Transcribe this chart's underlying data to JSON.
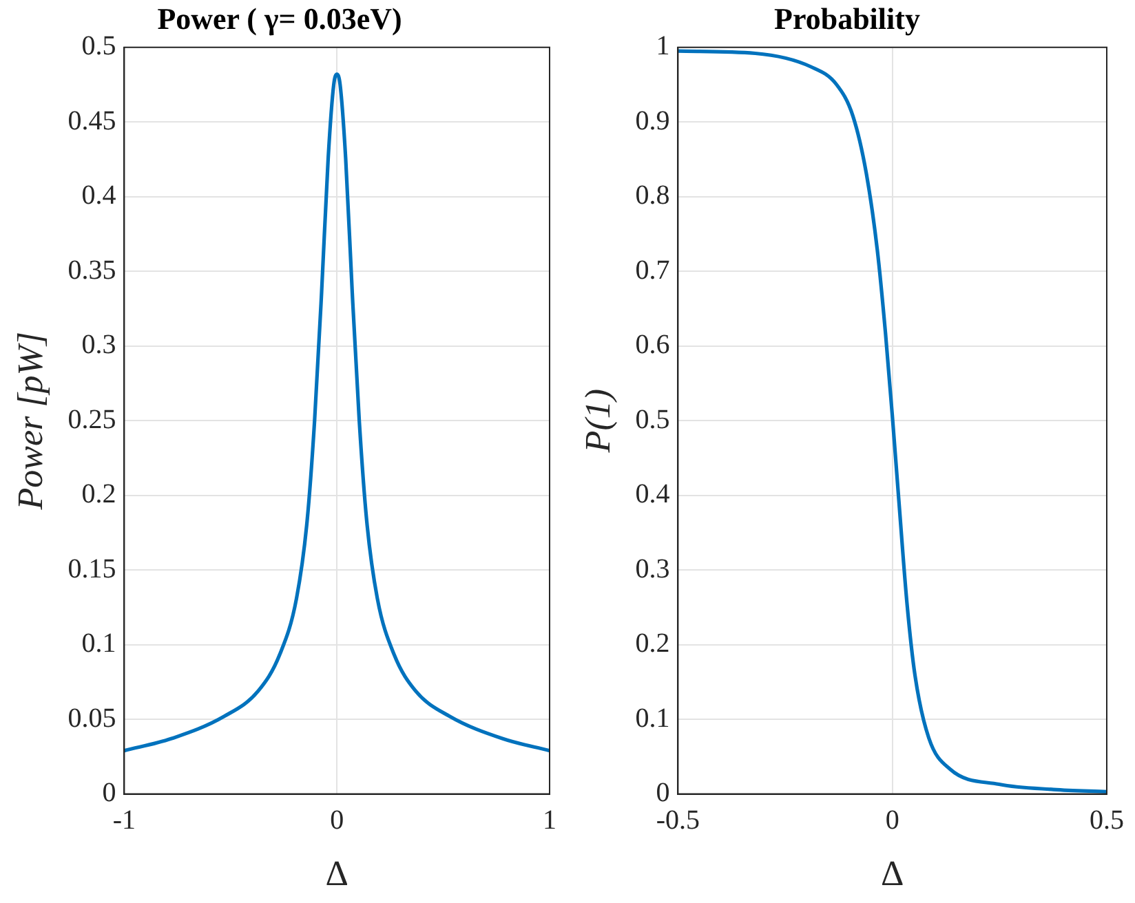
{
  "chart_data": [
    {
      "type": "line",
      "title": "Power ( γ= 0.03eV)",
      "xlabel": "Δ",
      "ylabel": "Power [pW]",
      "xlim": [
        -1,
        1
      ],
      "xticks": [
        -1,
        0,
        1
      ],
      "ylim": [
        0,
        0.5
      ],
      "yticks": [
        0,
        0.05,
        0.1,
        0.15,
        0.2,
        0.25,
        0.3,
        0.35,
        0.4,
        0.45,
        0.5
      ],
      "grid": true,
      "legend": false,
      "series": [
        {
          "color": "#0072bd",
          "x": [
            -1,
            -0.78,
            -0.53,
            -0.37,
            -0.27,
            -0.19,
            -0.14,
            -0.105,
            -0.072,
            -0.041,
            -0.015,
            0,
            0.015,
            0.041,
            0.072,
            0.105,
            0.14,
            0.19,
            0.27,
            0.37,
            0.53,
            0.78,
            1
          ],
          "values": [
            0.029,
            0.037,
            0.052,
            0.069,
            0.093,
            0.131,
            0.183,
            0.25,
            0.336,
            0.426,
            0.475,
            0.482,
            0.475,
            0.426,
            0.336,
            0.25,
            0.183,
            0.131,
            0.093,
            0.069,
            0.052,
            0.037,
            0.029
          ]
        }
      ]
    },
    {
      "type": "line",
      "title": "Probability",
      "xlabel": "Δ",
      "ylabel": "P(1)",
      "xlim": [
        -0.5,
        0.5
      ],
      "xticks": [
        -0.5,
        0,
        0.5
      ],
      "ylim": [
        0,
        1
      ],
      "yticks": [
        0,
        0.1,
        0.2,
        0.3,
        0.4,
        0.5,
        0.6,
        0.7,
        0.8,
        0.9,
        1
      ],
      "grid": true,
      "legend": false,
      "series": [
        {
          "color": "#0072bd",
          "x": [
            -0.5,
            -0.32,
            -0.19,
            -0.13,
            -0.092,
            -0.061,
            -0.035,
            -0.016,
            0,
            0.015,
            0.034,
            0.053,
            0.085,
            0.135,
            0.249,
            0.376,
            0.5
          ],
          "values": [
            0.995,
            0.992,
            0.974,
            0.95,
            0.908,
            0.832,
            0.728,
            0.617,
            0.506,
            0.394,
            0.256,
            0.158,
            0.075,
            0.033,
            0.013,
            0.006,
            0.003
          ]
        }
      ]
    }
  ]
}
